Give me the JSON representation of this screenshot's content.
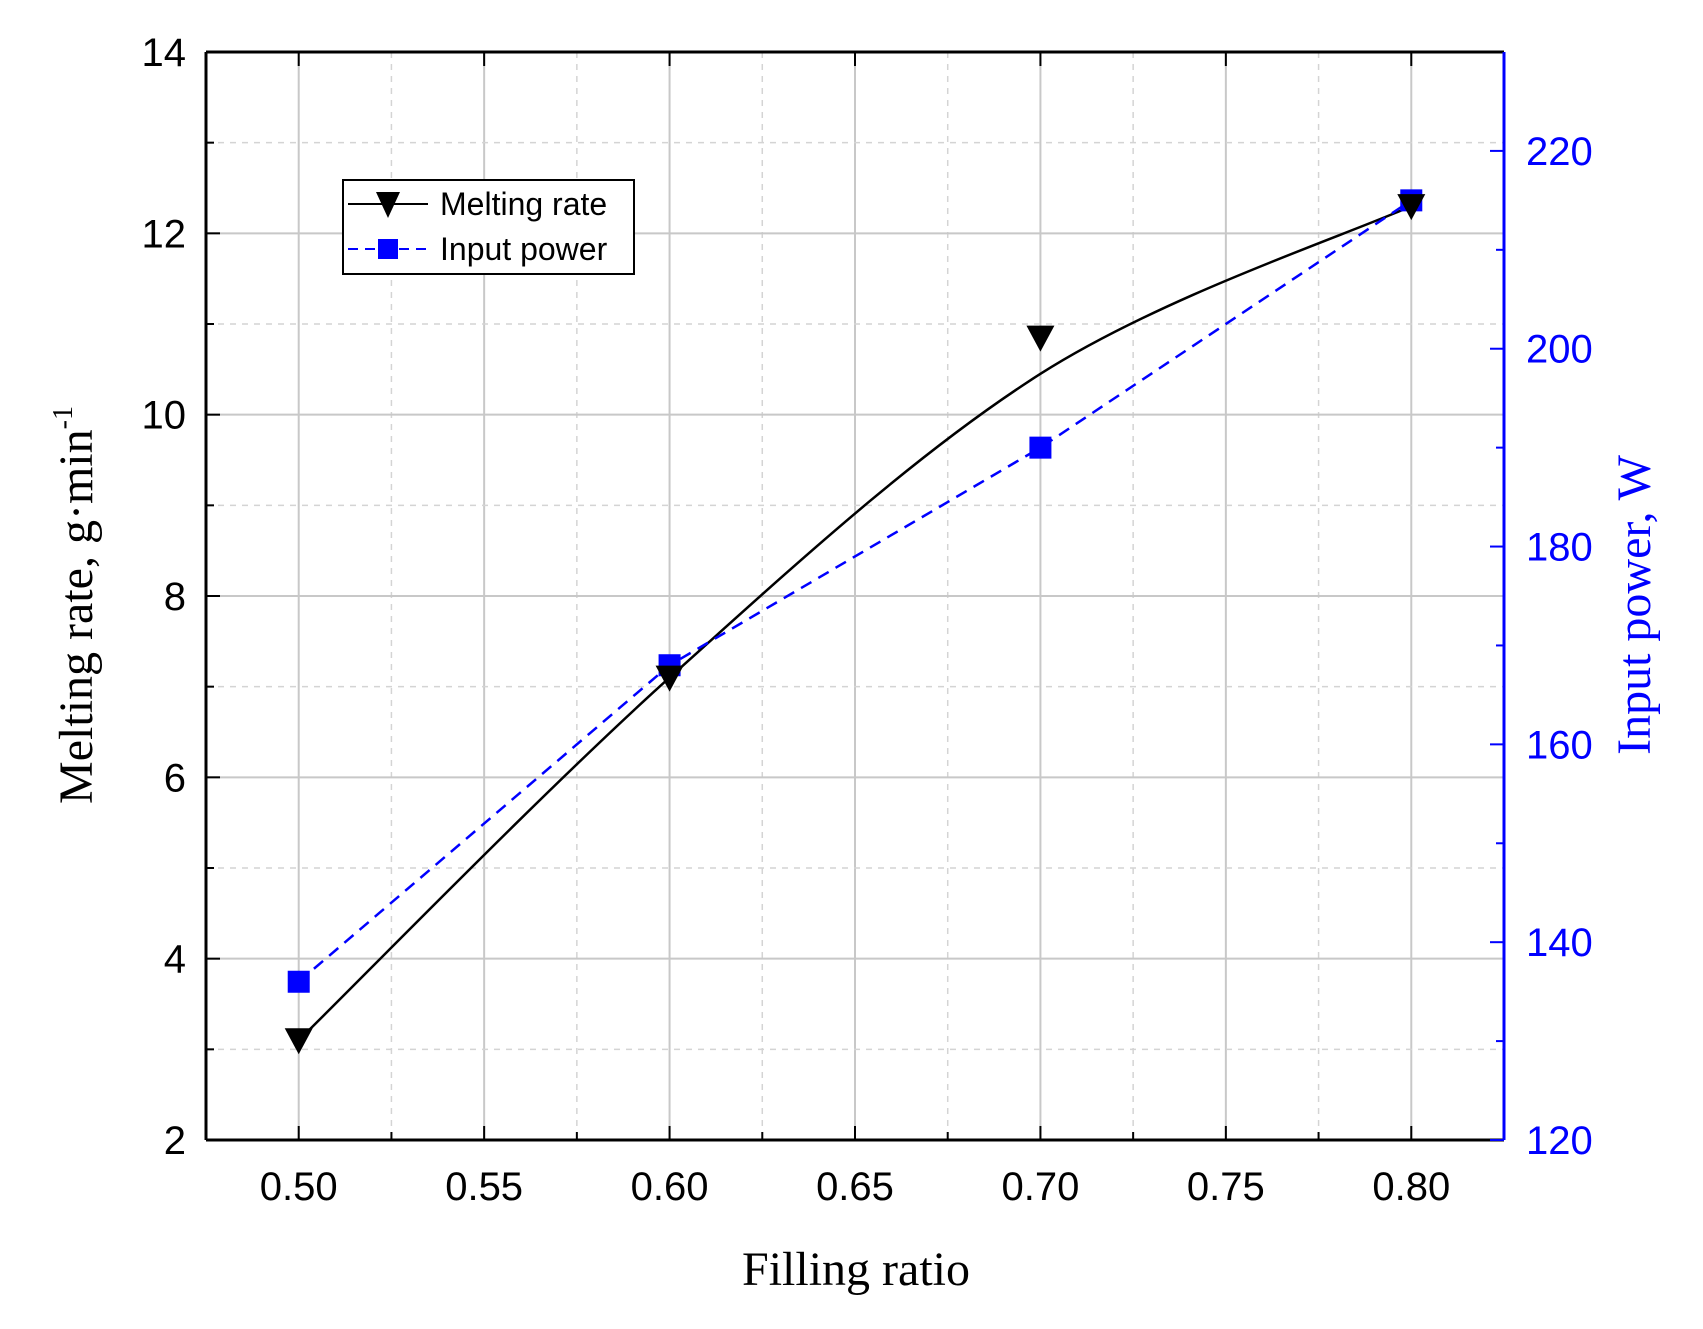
{
  "chart_data": {
    "type": "line",
    "xlabel": "Filling ratio",
    "ylabel": "Melting rate, g·min",
    "ylabel_superscript": "-1",
    "y2label": "Input power, W",
    "x": [
      0.5,
      0.6,
      0.7,
      0.8
    ],
    "xlim": [
      0.475,
      0.825
    ],
    "ylim": [
      2,
      14
    ],
    "y2lim": [
      120,
      230
    ],
    "xticks": [
      "0.50",
      "0.55",
      "0.60",
      "0.65",
      "0.70",
      "0.75",
      "0.80"
    ],
    "yticks": [
      "2",
      "4",
      "6",
      "8",
      "10",
      "12",
      "14"
    ],
    "y2ticks": [
      "120",
      "140",
      "160",
      "180",
      "200",
      "220"
    ],
    "grid": true,
    "legend_position": "top-left",
    "series": [
      {
        "name": "Melting rate",
        "axis": "left",
        "values": [
          3.1,
          7.1,
          10.85,
          12.3
        ],
        "marker": "down-triangle",
        "line": "solid-smooth",
        "color": "#000000"
      },
      {
        "name": "Input power",
        "axis": "right",
        "values": [
          136,
          168,
          190,
          215
        ],
        "marker": "square",
        "line": "dashed",
        "color": "#0000ff"
      }
    ]
  }
}
